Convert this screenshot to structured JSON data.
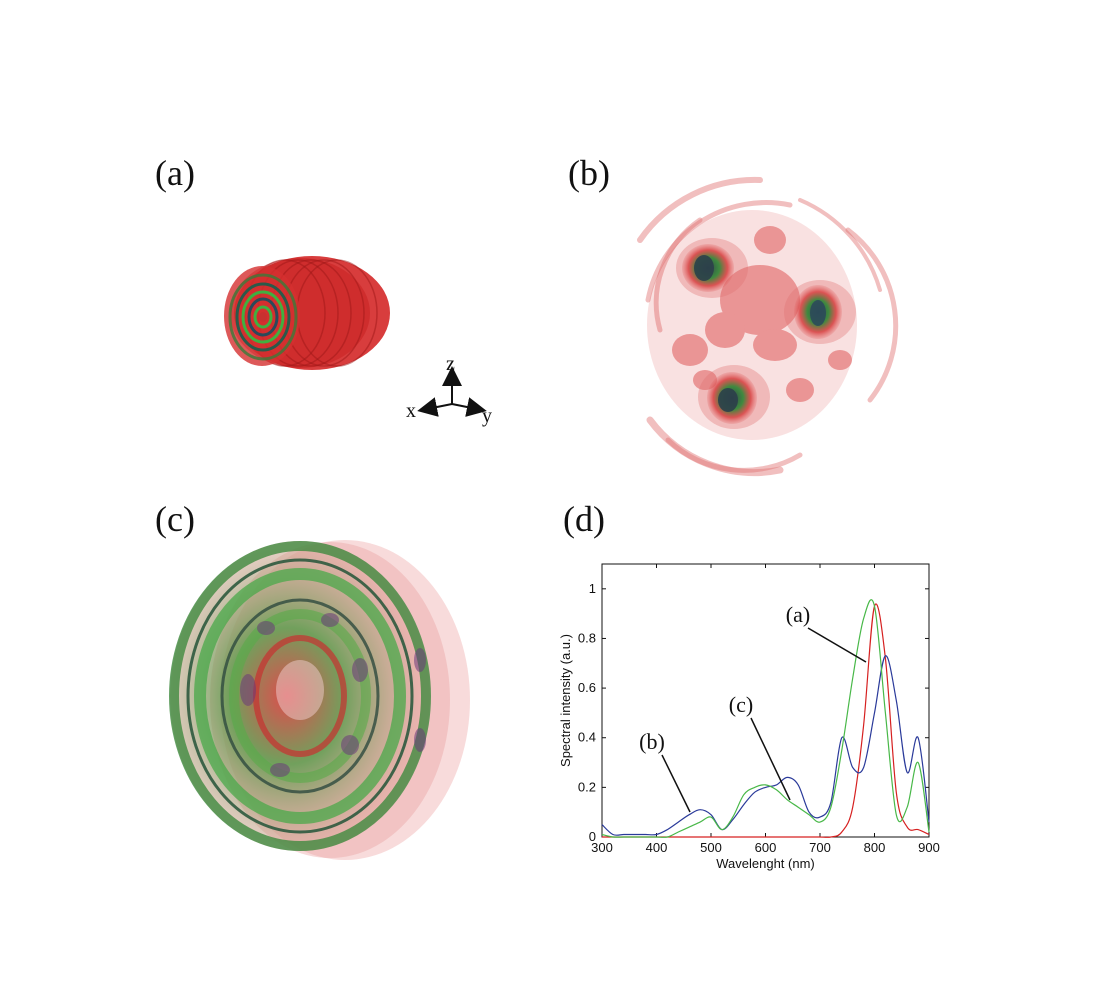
{
  "panels": {
    "a": {
      "label": "(a)"
    },
    "b": {
      "label": "(b)"
    },
    "c": {
      "label": "(c)"
    },
    "d": {
      "label": "(d)"
    }
  },
  "axes_triad": {
    "z": "z",
    "x": "x",
    "y": "y"
  },
  "chart_data": {
    "type": "line",
    "title": "",
    "xlabel": "Wavelenght (nm)",
    "ylabel": "Spectral intensity (a.u.)",
    "xlim": [
      300,
      900
    ],
    "ylim": [
      0,
      1.1
    ],
    "xticks": [
      300,
      400,
      500,
      600,
      700,
      800,
      900
    ],
    "yticks": [
      0,
      0.2,
      0.4,
      0.6,
      0.8,
      1
    ],
    "grid": false,
    "x": [
      300,
      320,
      340,
      360,
      380,
      400,
      420,
      440,
      460,
      480,
      500,
      520,
      540,
      560,
      580,
      600,
      620,
      640,
      660,
      680,
      700,
      720,
      740,
      760,
      780,
      800,
      820,
      840,
      860,
      880,
      900
    ],
    "series": [
      {
        "name": "(a)",
        "color": "#d62020",
        "values": [
          0,
          0,
          0,
          0,
          0,
          0,
          0,
          0,
          0,
          0,
          0,
          0,
          0,
          0,
          0,
          0,
          0,
          0,
          0,
          0,
          0,
          0,
          0.02,
          0.12,
          0.45,
          0.93,
          0.72,
          0.18,
          0.04,
          0.03,
          0.01
        ]
      },
      {
        "name": "(b)",
        "color": "#2a3a9a",
        "values": [
          0.05,
          0.01,
          0.01,
          0.01,
          0.01,
          0.01,
          0.03,
          0.06,
          0.09,
          0.11,
          0.09,
          0.03,
          0.07,
          0.13,
          0.18,
          0.2,
          0.21,
          0.24,
          0.21,
          0.1,
          0.08,
          0.14,
          0.4,
          0.28,
          0.28,
          0.5,
          0.73,
          0.55,
          0.26,
          0.4,
          0.06
        ]
      },
      {
        "name": "(c)",
        "color": "#48b848",
        "values": [
          0.01,
          0,
          0,
          0,
          0,
          0,
          0,
          0.02,
          0.04,
          0.06,
          0.08,
          0.03,
          0.08,
          0.17,
          0.2,
          0.21,
          0.19,
          0.15,
          0.12,
          0.09,
          0.06,
          0.12,
          0.35,
          0.64,
          0.88,
          0.93,
          0.5,
          0.09,
          0.12,
          0.3,
          0.02
        ]
      }
    ],
    "annotations": [
      {
        "text": "(a)"
      },
      {
        "text": "(c)"
      },
      {
        "text": "(b)"
      }
    ]
  }
}
